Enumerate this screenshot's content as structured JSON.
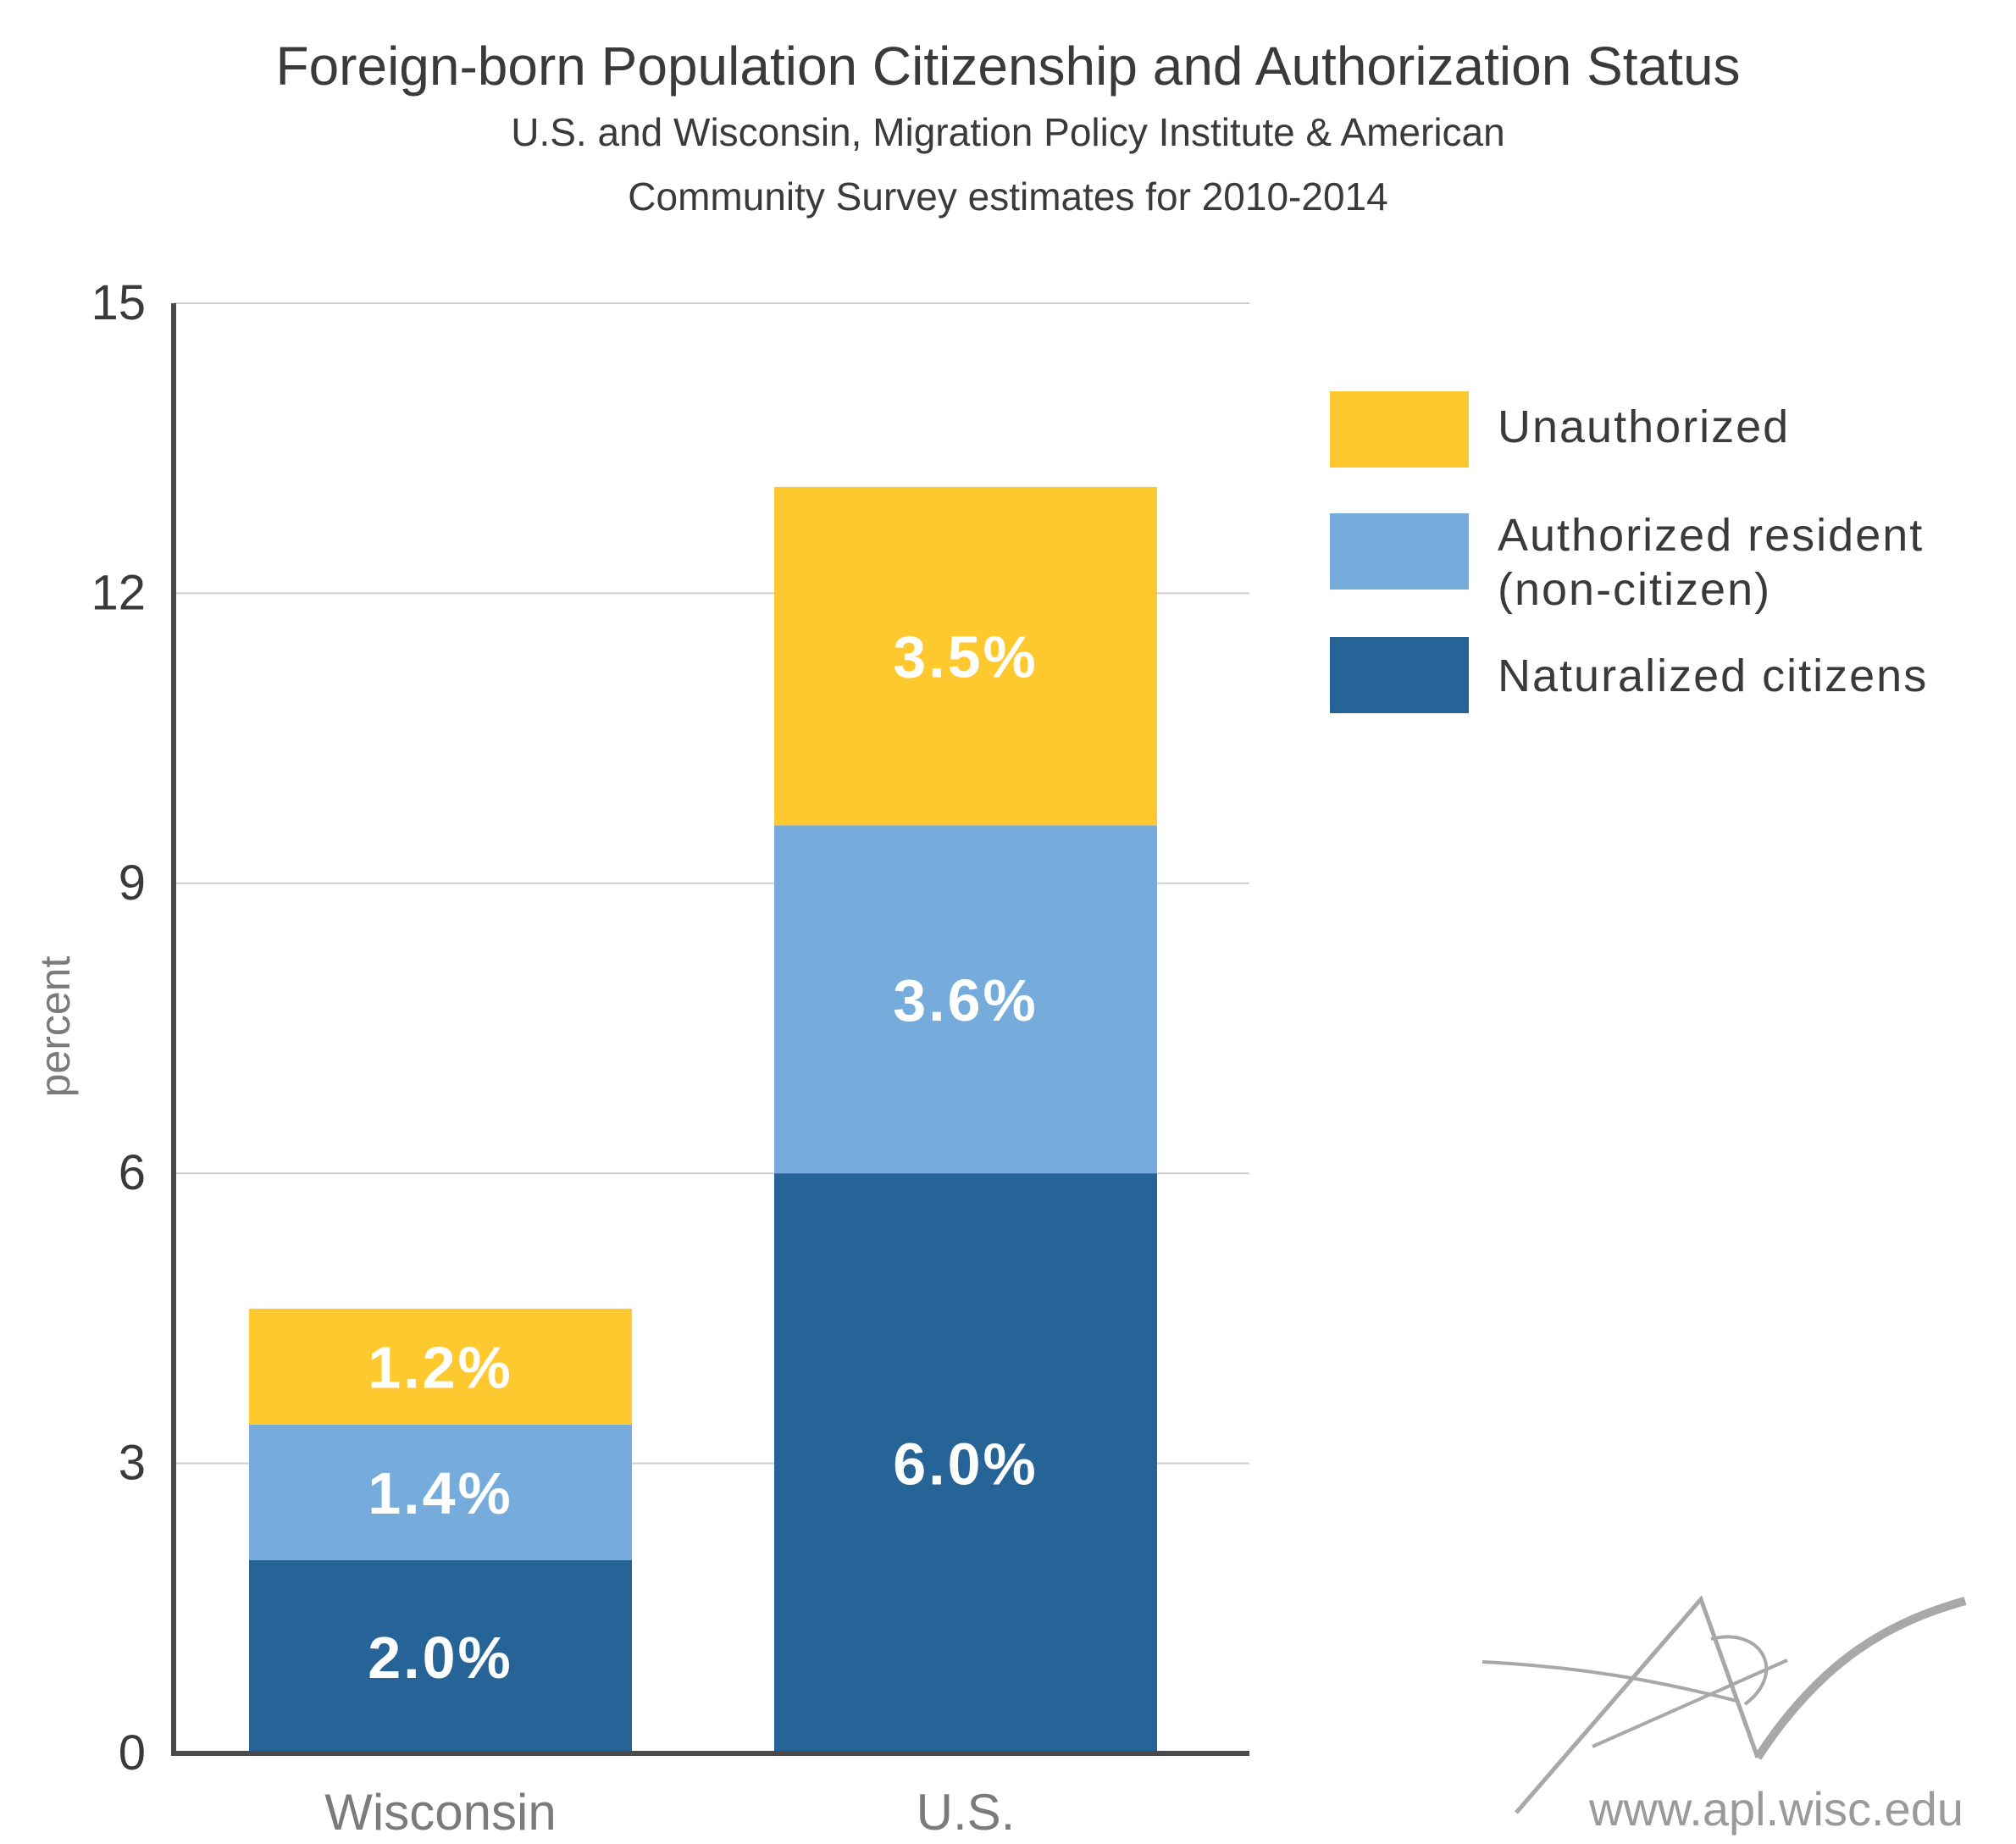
{
  "chart_data": {
    "type": "bar",
    "stacked": true,
    "title": "Foreign-born Population Citizenship and Authorization Status",
    "subtitle_lines": [
      "U.S. and Wisconsin, Migration Policy Institute & American",
      "Community Survey estimates for 2010-2014"
    ],
    "ylabel": "percent",
    "xlabel": "",
    "ylim": [
      0,
      15
    ],
    "yticks": [
      "0",
      "3",
      "6",
      "9",
      "12",
      "15"
    ],
    "grid": true,
    "legend_position": "right",
    "categories": [
      "Wisconsin",
      "U.S."
    ],
    "series": [
      {
        "name": "Naturalized citizens",
        "color": "#266397",
        "values": [
          2.0,
          6.0
        ],
        "labels": [
          "2.0%",
          "6.0%"
        ]
      },
      {
        "name": "Authorized resident (non-citizen)",
        "legend_lines": [
          "Authorized resident",
          "(non-citizen)"
        ],
        "color": "#75acdb",
        "values": [
          1.4,
          3.6
        ],
        "labels": [
          "1.4%",
          "3.6%"
        ]
      },
      {
        "name": "Unauthorized",
        "color": "#fdc92f",
        "values": [
          1.2,
          3.5
        ],
        "labels": [
          "1.2%",
          "3.5%"
        ]
      }
    ]
  },
  "watermark": {
    "logo": "APL",
    "url": "www.apl.wisc.edu"
  },
  "colors": {
    "axis": "#4a4a4a",
    "grid": "#cfcfcf",
    "title": "#3a3a3a",
    "muted": "#7b7b7b",
    "bar_label": "#ffffff"
  }
}
